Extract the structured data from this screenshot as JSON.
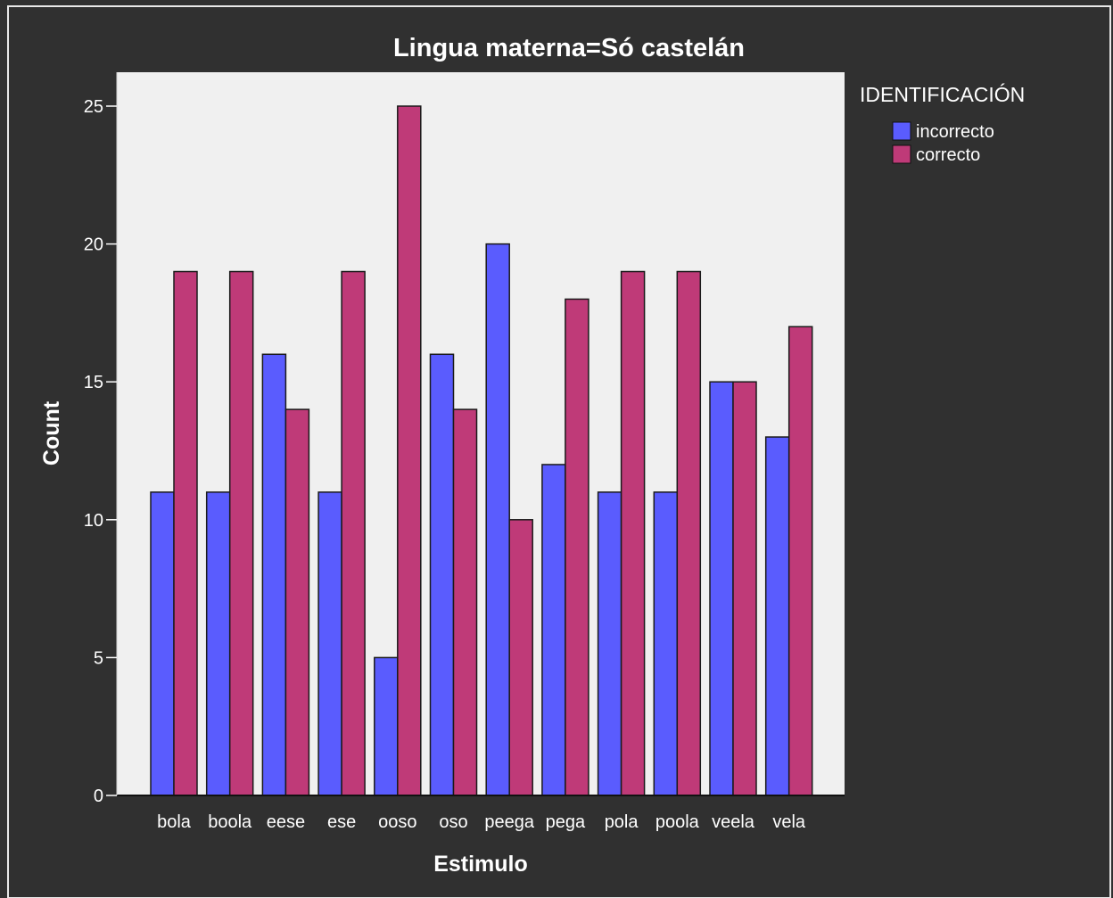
{
  "chart_data": {
    "type": "bar",
    "title": "Lingua materna=Só castelán",
    "xlabel": "Estimulo",
    "ylabel": "Count",
    "ylim": [
      0,
      25.5
    ],
    "yticks": [
      0,
      5,
      10,
      15,
      20,
      25
    ],
    "grid": false,
    "legend": {
      "title": "IDENTIFICACIÓN",
      "placement": "right"
    },
    "categories": [
      "bola",
      "boola",
      "eese",
      "ese",
      "ooso",
      "oso",
      "peega",
      "pega",
      "pola",
      "poola",
      "veela",
      "vela"
    ],
    "series": [
      {
        "name": "incorrecto",
        "color": "#5a5cfe",
        "values": [
          11,
          11,
          16,
          11,
          5,
          16,
          20,
          12,
          11,
          11,
          15,
          13
        ]
      },
      {
        "name": "correcto",
        "color": "#bf3a78",
        "values": [
          19,
          19,
          14,
          19,
          25,
          14,
          10,
          18,
          19,
          19,
          15,
          17
        ]
      }
    ],
    "colors": {
      "background": "#303030",
      "plot_area": "#f0f0f0",
      "text": "#ffffff",
      "bar_edge": "#1a1a1a"
    }
  }
}
